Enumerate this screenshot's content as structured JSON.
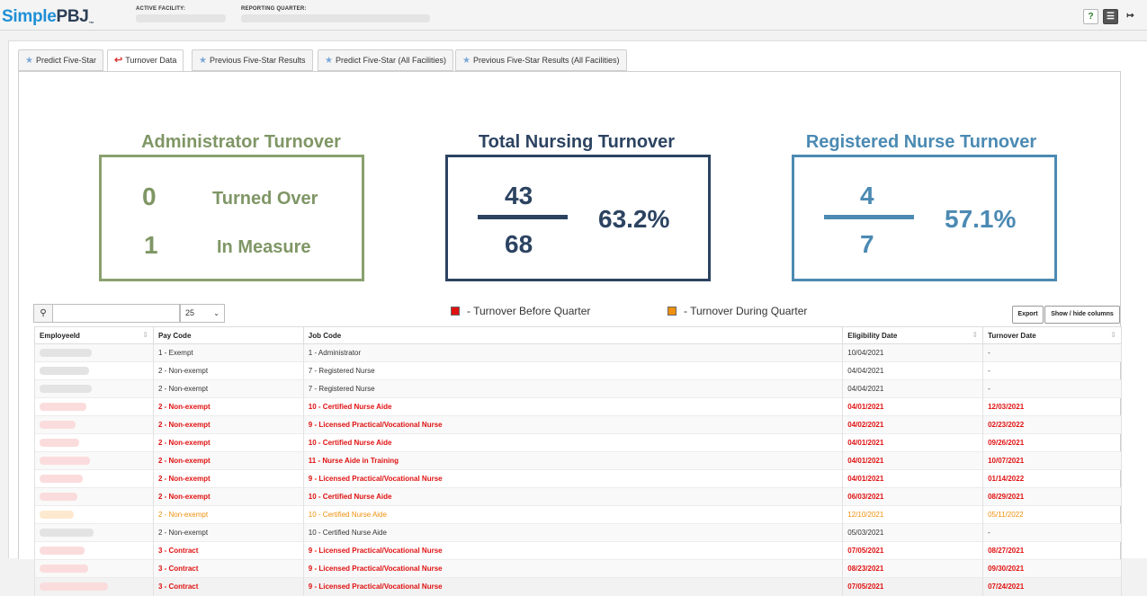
{
  "header": {
    "logo_simple": "Simple",
    "logo_pbj": "PBJ",
    "logo_tm": "™",
    "active_facility_label": "ACTIVE FACILITY:",
    "reporting_quarter_label": "REPORTING QUARTER:",
    "help_label": "?",
    "menu_label": "☰",
    "logout_label": "↦"
  },
  "tabs": [
    {
      "label": "Predict Five-Star",
      "icon": "star-icon",
      "active": false
    },
    {
      "label": "Turnover Data",
      "icon": "back-arrow-icon",
      "active": true
    },
    {
      "label": "Previous Five-Star Results",
      "icon": "star-icon",
      "active": false
    },
    {
      "label": "Predict Five-Star (All Facilities)",
      "icon": "star-icon",
      "active": false
    },
    {
      "label": "Previous Five-Star Results (All Facilities)",
      "icon": "star-icon",
      "active": false
    }
  ],
  "cards": {
    "admin": {
      "title": "Administrator Turnover",
      "turned_over_value": "0",
      "turned_over_label": "Turned Over",
      "in_measure_value": "1",
      "in_measure_label": "In Measure",
      "color": "#7f9665"
    },
    "nursing": {
      "title": "Total Nursing Turnover",
      "numerator": "43",
      "denominator": "68",
      "percent": "63.2%",
      "color": "#2c4361"
    },
    "rn": {
      "title": "Registered Nurse Turnover",
      "numerator": "4",
      "denominator": "7",
      "percent": "57.1%",
      "color": "#4b8ab3"
    }
  },
  "legend": {
    "before_label": "- Turnover Before Quarter",
    "before_color": "#e01111",
    "during_label": "- Turnover During Quarter",
    "during_color": "#f0900c"
  },
  "controls": {
    "search_placeholder": "",
    "search_icon": "search-icon",
    "page_size": "25",
    "export_label": "Export",
    "show_hide_label": "Show / hide columns"
  },
  "table": {
    "columns": [
      "EmployeeId",
      "Pay Code",
      "Job Code",
      "Eligibility Date",
      "Turnover Date"
    ],
    "rows": [
      {
        "status": "normal",
        "pay": "1 - Exempt",
        "job": "1 - Administrator",
        "elig": "10/04/2021",
        "turn": "-"
      },
      {
        "status": "normal",
        "pay": "2 - Non-exempt",
        "job": "7 - Registered Nurse",
        "elig": "04/04/2021",
        "turn": "-"
      },
      {
        "status": "normal",
        "pay": "2 - Non-exempt",
        "job": "7 - Registered Nurse",
        "elig": "04/04/2021",
        "turn": "-"
      },
      {
        "status": "before",
        "pay": "2 - Non-exempt",
        "job": "10 - Certified Nurse Aide",
        "elig": "04/01/2021",
        "turn": "12/03/2021"
      },
      {
        "status": "before",
        "pay": "2 - Non-exempt",
        "job": "9 - Licensed Practical/Vocational Nurse",
        "elig": "04/02/2021",
        "turn": "02/23/2022"
      },
      {
        "status": "before",
        "pay": "2 - Non-exempt",
        "job": "10 - Certified Nurse Aide",
        "elig": "04/01/2021",
        "turn": "09/26/2021"
      },
      {
        "status": "before",
        "pay": "2 - Non-exempt",
        "job": "11 - Nurse Aide in Training",
        "elig": "04/01/2021",
        "turn": "10/07/2021"
      },
      {
        "status": "before",
        "pay": "2 - Non-exempt",
        "job": "9 - Licensed Practical/Vocational Nurse",
        "elig": "04/01/2021",
        "turn": "01/14/2022"
      },
      {
        "status": "before",
        "pay": "2 - Non-exempt",
        "job": "10 - Certified Nurse Aide",
        "elig": "06/03/2021",
        "turn": "08/29/2021"
      },
      {
        "status": "during",
        "pay": "2 - Non-exempt",
        "job": "10 - Certified Nurse Aide",
        "elig": "12/10/2021",
        "turn": "05/11/2022"
      },
      {
        "status": "normal",
        "pay": "2 - Non-exempt",
        "job": "10 - Certified Nurse Aide",
        "elig": "05/03/2021",
        "turn": "-"
      },
      {
        "status": "before",
        "pay": "3 - Contract",
        "job": "9 - Licensed Practical/Vocational Nurse",
        "elig": "07/05/2021",
        "turn": "08/27/2021"
      },
      {
        "status": "before",
        "pay": "3 - Contract",
        "job": "9 - Licensed Practical/Vocational Nurse",
        "elig": "08/23/2021",
        "turn": "09/30/2021"
      },
      {
        "status": "before",
        "pay": "3 - Contract",
        "job": "9 - Licensed Practical/Vocational Nurse",
        "elig": "07/05/2021",
        "turn": "07/24/2021"
      }
    ]
  }
}
